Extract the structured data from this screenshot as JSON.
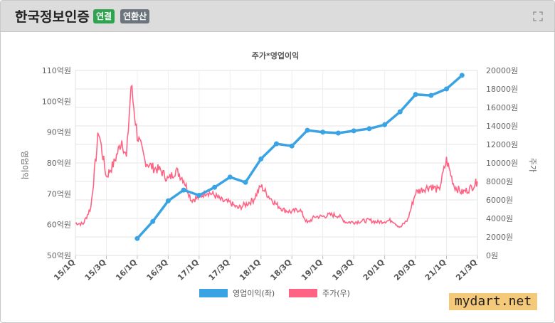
{
  "header": {
    "title": "한국정보인증",
    "badge_consolidated": "연결",
    "badge_annualized": "연환산"
  },
  "watermark": "mydart.net",
  "colors": {
    "op_income": "#3aa3e3",
    "price": "#ff6384",
    "header_bg": "#dcdcdc",
    "badge_green": "#2ea44f",
    "badge_gray": "#6c757d"
  },
  "icons": {
    "expand": "expand-icon"
  },
  "chart_data": {
    "type": "line",
    "title": "주가*영업이익",
    "ylabel": "영업이익",
    "y2label": "주가",
    "x_ticks": [
      "15/1Q",
      "15/3Q",
      "16/1Q",
      "16/3Q",
      "17/1Q",
      "17/3Q",
      "18/1Q",
      "18/3Q",
      "19/1Q",
      "19/3Q",
      "20/1Q",
      "20/3Q",
      "21/1Q",
      "21/3Q"
    ],
    "y_left": {
      "min": 50,
      "max": 110,
      "step": 10,
      "tick_labels": [
        "50억원",
        "60억원",
        "70억원",
        "80억원",
        "90억원",
        "100억원",
        "110억원"
      ]
    },
    "y_right": {
      "min": 0,
      "max": 20000,
      "step": 2000,
      "tick_labels": [
        "0원",
        "2000원",
        "4000원",
        "6000원",
        "8000원",
        "10000원",
        "12000원",
        "14000원",
        "16000원",
        "18000원",
        "20000원"
      ]
    },
    "grid": true,
    "legend": {
      "position": "bottom",
      "entries": [
        "영업이익(좌)",
        "주가(우)"
      ]
    },
    "series": [
      {
        "name": "영업이익(좌)",
        "axis": "left",
        "style": "line-markers",
        "x": [
          "16/1Q",
          "16/2Q",
          "16/3Q",
          "16/4Q",
          "17/1Q",
          "17/2Q",
          "17/3Q",
          "17/4Q",
          "18/1Q",
          "18/2Q",
          "18/3Q",
          "18/4Q",
          "19/1Q",
          "19/2Q",
          "19/3Q",
          "19/4Q",
          "20/1Q",
          "20/2Q",
          "20/3Q",
          "20/4Q",
          "21/1Q",
          "21/2Q"
        ],
        "values": [
          55.5,
          61,
          67.7,
          71.2,
          69.5,
          72.1,
          75.4,
          73.7,
          81.3,
          86.2,
          85.5,
          90.6,
          90.0,
          89.7,
          90.4,
          91.1,
          92.4,
          96.6,
          102.2,
          101.9,
          104.0,
          108.4
        ]
      },
      {
        "name": "주가(우)",
        "axis": "right",
        "style": "line",
        "x": [
          "15/1Q",
          "15/1.5Q",
          "15/2Q",
          "15/2.5Q",
          "15/3Q",
          "15/3.5Q",
          "15/4Q",
          "15/4.3Q",
          "15/4.6Q",
          "16/1Q",
          "16/1.5Q",
          "16/2Q",
          "16/2.5Q",
          "16/3Q",
          "16/3.5Q",
          "16/4Q",
          "16/4.5Q",
          "17/1Q",
          "17/1.5Q",
          "17/2Q",
          "17/2.5Q",
          "17/3Q",
          "17/3.5Q",
          "17/4Q",
          "17/4.5Q",
          "18/1Q",
          "18/1.5Q",
          "18/2Q",
          "18/2.5Q",
          "18/3Q",
          "18/3.5Q",
          "18/4Q",
          "18/4.5Q",
          "19/1Q",
          "19/1.5Q",
          "19/2Q",
          "19/2.5Q",
          "19/3Q",
          "19/3.5Q",
          "19/4Q",
          "19/4.5Q",
          "20/1Q",
          "20/1.5Q",
          "20/2Q",
          "20/2.5Q",
          "20/3Q",
          "20/3.5Q",
          "20/4Q",
          "20/4.5Q",
          "21/1Q",
          "21/1.5Q",
          "21/2Q",
          "21/2.5Q",
          "21/3Q"
        ],
        "values": [
          3500,
          3400,
          5200,
          13500,
          8500,
          10000,
          12500,
          10500,
          18400,
          13000,
          10200,
          9500,
          9200,
          8200,
          9200,
          8200,
          6000,
          6300,
          6900,
          6500,
          5900,
          5700,
          5100,
          5500,
          6000,
          7500,
          6400,
          5500,
          4900,
          4700,
          5000,
          3500,
          4200,
          4200,
          4400,
          4300,
          3600,
          3600,
          3700,
          3800,
          3600,
          3700,
          3800,
          3000,
          3900,
          6800,
          7200,
          7500,
          7000,
          10300,
          7500,
          6800,
          7200,
          8000
        ]
      }
    ]
  }
}
